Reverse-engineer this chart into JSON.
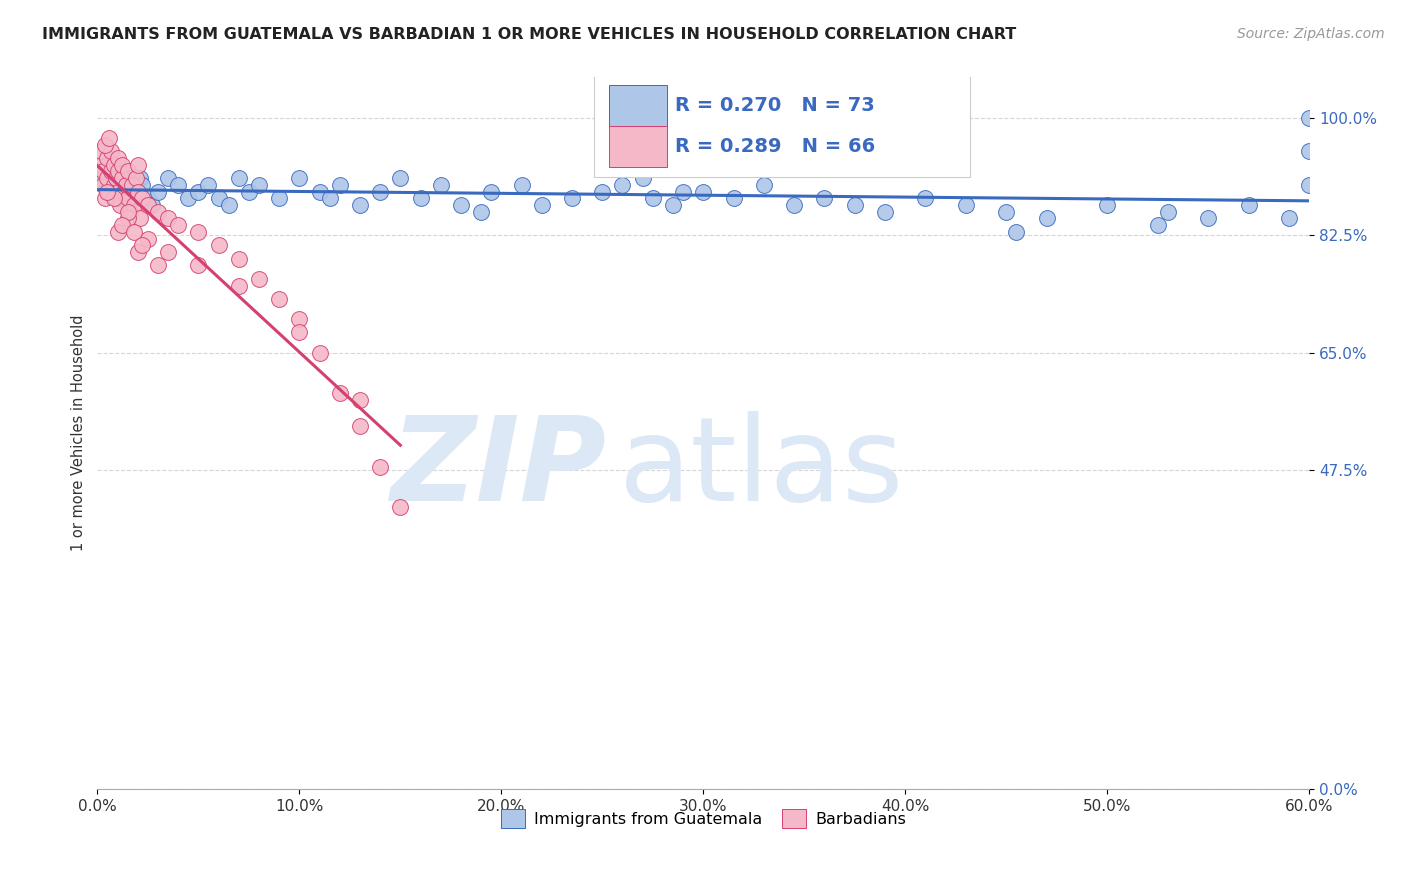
{
  "title": "IMMIGRANTS FROM GUATEMALA VS BARBADIAN 1 OR MORE VEHICLES IN HOUSEHOLD CORRELATION CHART",
  "source": "Source: ZipAtlas.com",
  "ylabel_label": "1 or more Vehicles in Household",
  "legend_label1": "Immigrants from Guatemala",
  "legend_label2": "Barbadians",
  "R1": 0.27,
  "N1": 73,
  "R2": 0.289,
  "N2": 66,
  "color1": "#aec6e8",
  "color2": "#f5b8c8",
  "trendline1_color": "#3a6abf",
  "trendline2_color": "#d44070",
  "watermark_zip": "ZIP",
  "watermark_atlas": "atlas",
  "watermark_color": "#dce8f5",
  "title_color": "#222222",
  "source_color": "#999999",
  "ytick_color": "#3a6abf",
  "xtick_color": "#333333",
  "xlim": [
    0,
    60
  ],
  "ylim": [
    0,
    106
  ],
  "x_ticks": [
    0,
    10,
    20,
    30,
    40,
    50,
    60
  ],
  "y_ticks": [
    0,
    47.5,
    65.0,
    82.5,
    100.0
  ],
  "gtk_x": [
    0.3,
    0.5,
    0.7,
    0.9,
    1.0,
    1.1,
    1.2,
    1.3,
    1.4,
    1.5,
    1.6,
    1.7,
    1.8,
    1.9,
    2.0,
    2.1,
    2.2,
    2.5,
    2.7,
    3.0,
    3.5,
    4.0,
    4.5,
    5.0,
    5.5,
    6.0,
    6.5,
    7.0,
    7.5,
    8.0,
    9.0,
    10.0,
    11.0,
    11.5,
    12.0,
    13.0,
    14.0,
    15.0,
    16.0,
    17.0,
    18.0,
    19.5,
    21.0,
    22.0,
    23.5,
    25.0,
    26.0,
    27.5,
    28.5,
    30.0,
    31.5,
    33.0,
    34.5,
    36.0,
    37.5,
    39.0,
    41.0,
    43.0,
    45.0,
    47.0,
    50.0,
    53.0,
    55.0,
    57.0,
    59.0,
    60.0,
    60.0,
    60.0,
    27.0,
    29.0,
    19.0,
    45.5,
    52.5
  ],
  "gtk_y": [
    91,
    90,
    89,
    91,
    88,
    90,
    91,
    89,
    90,
    88,
    91,
    89,
    90,
    88,
    89,
    91,
    90,
    88,
    87,
    89,
    91,
    90,
    88,
    89,
    90,
    88,
    87,
    91,
    89,
    90,
    88,
    91,
    89,
    88,
    90,
    87,
    89,
    91,
    88,
    90,
    87,
    89,
    90,
    87,
    88,
    89,
    90,
    88,
    87,
    89,
    88,
    90,
    87,
    88,
    87,
    86,
    88,
    87,
    86,
    85,
    87,
    86,
    85,
    87,
    85,
    90,
    95,
    100,
    91,
    89,
    86,
    83,
    84
  ],
  "barb_x": [
    0.1,
    0.2,
    0.2,
    0.3,
    0.3,
    0.4,
    0.5,
    0.5,
    0.6,
    0.7,
    0.7,
    0.8,
    0.8,
    0.9,
    0.9,
    1.0,
    1.0,
    1.0,
    1.1,
    1.2,
    1.2,
    1.3,
    1.4,
    1.5,
    1.5,
    1.6,
    1.7,
    1.8,
    1.9,
    2.0,
    2.0,
    2.1,
    2.2,
    2.5,
    3.0,
    3.5,
    4.0,
    5.0,
    6.0,
    7.0,
    8.0,
    9.0,
    10.0,
    11.0,
    12.0,
    13.0,
    14.0,
    15.0,
    0.4,
    0.6,
    1.0,
    1.5,
    2.5,
    3.5,
    5.0,
    7.0,
    10.0,
    13.0,
    2.0,
    1.5,
    0.8,
    1.2,
    0.5,
    1.8,
    2.2,
    3.0
  ],
  "barb_y": [
    91,
    93,
    95,
    90,
    92,
    88,
    91,
    94,
    89,
    92,
    95,
    90,
    93,
    88,
    91,
    89,
    92,
    94,
    87,
    91,
    93,
    89,
    90,
    88,
    92,
    86,
    90,
    87,
    91,
    89,
    93,
    85,
    88,
    87,
    86,
    85,
    84,
    83,
    81,
    79,
    76,
    73,
    70,
    65,
    59,
    54,
    48,
    42,
    96,
    97,
    83,
    85,
    82,
    80,
    78,
    75,
    68,
    58,
    80,
    86,
    88,
    84,
    89,
    83,
    81,
    78
  ],
  "trendline1_x_start": 0,
  "trendline1_x_end": 60,
  "trendline2_x_start": 0,
  "trendline2_x_end": 15
}
